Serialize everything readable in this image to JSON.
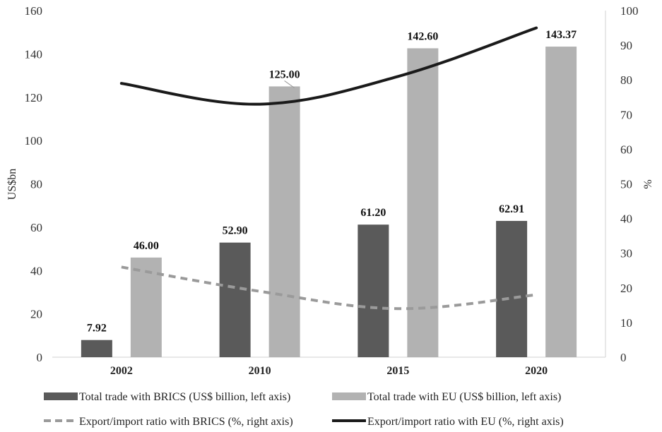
{
  "chart_data": {
    "type": "bar",
    "categories": [
      "2002",
      "2010",
      "2015",
      "2020"
    ],
    "series": [
      {
        "name": "Total trade with BRICS (US$ billion, left axis)",
        "kind": "bar",
        "axis": "left",
        "color": "#5a5a5a",
        "values": [
          7.92,
          52.9,
          61.2,
          62.91
        ],
        "labels": [
          "7.92",
          "52.90",
          "61.20",
          "62.91"
        ]
      },
      {
        "name": "Total trade with EU (US$ billion, left axis)",
        "kind": "bar",
        "axis": "left",
        "color": "#b2b2b2",
        "values": [
          46.0,
          125.0,
          142.6,
          143.37
        ],
        "labels": [
          "46.00",
          "125.00",
          "142.60",
          "143.37"
        ]
      },
      {
        "name": "Export/import ratio with BRICS (%, right axis)",
        "kind": "line",
        "style": "dashed",
        "axis": "right",
        "color": "#9a9a9a",
        "values": [
          26,
          19,
          14,
          18
        ]
      },
      {
        "name": "Export/import ratio with EU (%, right axis)",
        "kind": "line",
        "style": "solid",
        "axis": "right",
        "color": "#1a1a1a",
        "values": [
          79,
          73,
          81,
          95
        ]
      }
    ],
    "ylabel": "US$bn",
    "ylabel_right": "%",
    "ylim": [
      0,
      160
    ],
    "ylim_right": [
      0,
      100
    ],
    "yticks": [
      "0",
      "20",
      "40",
      "60",
      "80",
      "100",
      "120",
      "140",
      "160"
    ],
    "yticks_right": [
      "0",
      "10",
      "20",
      "30",
      "40",
      "50",
      "60",
      "70",
      "80",
      "90",
      "100"
    ],
    "grid": false,
    "legend_position": "bottom"
  }
}
